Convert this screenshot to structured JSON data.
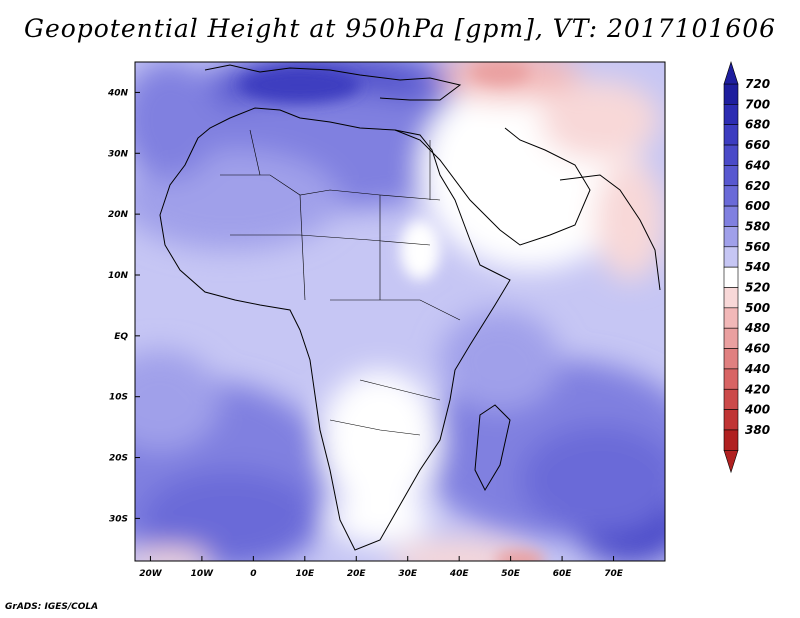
{
  "title": "Geopotential Height at 950hPa [gpm], VT: 2017101606",
  "credit": "GrADS: IGES/COLA",
  "map": {
    "lon_range": [
      -23,
      80
    ],
    "lat_range": [
      -37,
      45
    ],
    "lon_ticks": [
      {
        "value": -20,
        "label": "20W"
      },
      {
        "value": -10,
        "label": "10W"
      },
      {
        "value": 0,
        "label": "0"
      },
      {
        "value": 10,
        "label": "10E"
      },
      {
        "value": 20,
        "label": "20E"
      },
      {
        "value": 30,
        "label": "30E"
      },
      {
        "value": 40,
        "label": "40E"
      },
      {
        "value": 50,
        "label": "50E"
      },
      {
        "value": 60,
        "label": "60E"
      },
      {
        "value": 70,
        "label": "70E"
      }
    ],
    "lat_ticks": [
      {
        "value": 40,
        "label": "40N"
      },
      {
        "value": 30,
        "label": "30N"
      },
      {
        "value": 20,
        "label": "20N"
      },
      {
        "value": 10,
        "label": "10N"
      },
      {
        "value": 0,
        "label": "EQ"
      },
      {
        "value": -10,
        "label": "10S"
      },
      {
        "value": -20,
        "label": "20S"
      },
      {
        "value": -30,
        "label": "30S"
      }
    ]
  },
  "colorbar": {
    "levels": [
      "720",
      "700",
      "680",
      "660",
      "640",
      "620",
      "600",
      "580",
      "560",
      "540",
      "520",
      "500",
      "480",
      "460",
      "440",
      "420",
      "400",
      "380"
    ],
    "colors": [
      "#1e1e9e",
      "#2c2cb2",
      "#3c3cc0",
      "#4a4ac8",
      "#5858d0",
      "#6a6ad8",
      "#8080e0",
      "#a0a0ea",
      "#c6c6f4",
      "#ffffff",
      "#f8d8d8",
      "#f2b8b8",
      "#eaa0a0",
      "#e08080",
      "#d86464",
      "#cc4a4a",
      "#c03434",
      "#b02020"
    ]
  }
}
